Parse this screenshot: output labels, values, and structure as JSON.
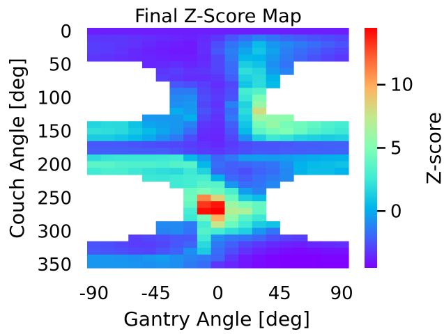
{
  "chart_data": {
    "type": "heatmap",
    "title": "Final Z-Score Map",
    "xlabel": "Gantry Angle [deg]",
    "ylabel": "Couch Angle [deg]",
    "colorbar_label": "Z-score",
    "colormap": "rainbow",
    "vmin": -4.5,
    "vmax": 14.5,
    "x_ticks": [
      {
        "value": -90,
        "label": "-90"
      },
      {
        "value": -45,
        "label": "-45"
      },
      {
        "value": 0,
        "label": "0"
      },
      {
        "value": 45,
        "label": "45"
      },
      {
        "value": 90,
        "label": "90"
      }
    ],
    "y_ticks": [
      {
        "value": 0,
        "label": "0"
      },
      {
        "value": 50,
        "label": "50"
      },
      {
        "value": 100,
        "label": "100"
      },
      {
        "value": 150,
        "label": "150"
      },
      {
        "value": 200,
        "label": "200"
      },
      {
        "value": 250,
        "label": "250"
      },
      {
        "value": 300,
        "label": "300"
      },
      {
        "value": 350,
        "label": "350"
      }
    ],
    "colorbar_ticks": [
      {
        "value": 0,
        "label": "0"
      },
      {
        "value": 5,
        "label": "5"
      },
      {
        "value": 10,
        "label": "10"
      }
    ],
    "x": [
      -90,
      -80,
      -70,
      -60,
      -50,
      -40,
      -30,
      -20,
      -10,
      0,
      10,
      20,
      30,
      40,
      50,
      60,
      70,
      80,
      90
    ],
    "y": [
      0,
      10,
      20,
      30,
      40,
      50,
      60,
      70,
      80,
      90,
      100,
      110,
      120,
      130,
      140,
      150,
      160,
      170,
      180,
      190,
      200,
      210,
      220,
      230,
      240,
      250,
      260,
      270,
      280,
      290,
      300,
      310,
      320,
      330,
      340,
      350
    ],
    "z": [
      [
        -3.8,
        -3.8,
        -3.8,
        -3.8,
        -3.8,
        -3.8,
        -3.8,
        -3.8,
        -3.8,
        -3.8,
        -3.8,
        -3.8,
        -3.8,
        -3.8,
        -3.8,
        -3.8,
        -3.8,
        -3.8,
        -3.8
      ],
      [
        -3.2,
        -3.2,
        -3.2,
        -3.3,
        -3.4,
        -3.5,
        -3.6,
        -3.7,
        -3.5,
        -3.2,
        -2.4,
        -1.8,
        -1.2,
        -1.6,
        -2.0,
        -2.3,
        -2.5,
        -2.7,
        -2.9
      ],
      [
        -3.0,
        -3.1,
        -3.2,
        -3.3,
        -3.5,
        -3.7,
        -3.8,
        -3.9,
        -3.4,
        -2.6,
        -1.6,
        -0.8,
        0.6,
        -0.6,
        -1.0,
        -1.4,
        -1.8,
        -2.2,
        -2.5
      ],
      [
        -3.0,
        -3.1,
        -3.3,
        -3.5,
        -3.7,
        -3.8,
        -3.9,
        -3.9,
        -3.4,
        -2.4,
        -1.3,
        -0.2,
        0.9,
        -0.3,
        -1.3,
        -1.8,
        -2.2,
        -2.6,
        -2.9
      ],
      [
        -3.2,
        -3.3,
        -3.4,
        -3.5,
        -3.6,
        -3.7,
        -3.8,
        -3.8,
        -3.5,
        -2.8,
        -1.5,
        0.4,
        0.3,
        -0.6,
        -1.4,
        -2.0,
        -2.5,
        -2.9,
        -3.2
      ],
      [
        null,
        null,
        null,
        null,
        -3.6,
        -3.5,
        -3.4,
        -3.6,
        -3.4,
        -2.8,
        -1.8,
        1.3,
        0.8,
        -0.8,
        -1.6,
        null,
        null,
        null,
        null
      ],
      [
        null,
        null,
        null,
        null,
        null,
        -3.2,
        -3.0,
        -3.3,
        -3.2,
        -2.9,
        -1.9,
        2.0,
        1.6,
        -0.5,
        -1.2,
        null,
        null,
        null,
        null
      ],
      [
        null,
        null,
        null,
        null,
        null,
        -3.0,
        -3.2,
        -3.4,
        -3.4,
        -3.2,
        -2.2,
        1.4,
        1.8,
        0.2,
        null,
        null,
        null,
        null,
        null
      ],
      [
        null,
        null,
        null,
        null,
        null,
        null,
        -2.4,
        -2.6,
        -3.0,
        -3.4,
        -2.8,
        0.9,
        1.9,
        0.5,
        null,
        null,
        null,
        null,
        null
      ],
      [
        null,
        null,
        null,
        null,
        null,
        null,
        -1.4,
        -1.4,
        -2.8,
        -3.2,
        -2.6,
        2.8,
        3.4,
        null,
        null,
        null,
        null,
        null,
        null
      ],
      [
        null,
        null,
        null,
        null,
        null,
        null,
        -1.0,
        -0.9,
        -2.6,
        -3.1,
        -2.5,
        2.4,
        4.8,
        null,
        null,
        null,
        null,
        null,
        null
      ],
      [
        null,
        null,
        null,
        null,
        null,
        null,
        -0.8,
        -0.6,
        -2.8,
        -3.3,
        -1.2,
        1.5,
        5.8,
        null,
        null,
        null,
        null,
        null,
        null
      ],
      [
        null,
        null,
        null,
        null,
        null,
        null,
        0.0,
        -0.5,
        -2.5,
        -3.1,
        -1.8,
        1.9,
        8.0,
        null,
        null,
        null,
        null,
        null,
        null
      ],
      [
        null,
        null,
        null,
        null,
        -0.6,
        -0.6,
        -0.6,
        0.1,
        -2.8,
        -3.3,
        -1.5,
        1.4,
        6.1,
        5.6,
        5.4,
        null,
        null,
        null,
        null
      ],
      [
        1.6,
        1.8,
        1.8,
        0.8,
        -0.2,
        -0.4,
        -0.6,
        -1.2,
        -3.2,
        -3.4,
        -2.2,
        0.9,
        4.6,
        5.8,
        4.6,
        4.4,
        3.9,
        3.2,
        2.8
      ],
      [
        2.1,
        2.0,
        1.8,
        1.1,
        0.5,
        -0.2,
        -0.7,
        -1.8,
        -3.4,
        -3.5,
        -2.5,
        0.5,
        3.8,
        4.6,
        5.0,
        4.2,
        3.4,
        2.9,
        2.5
      ],
      [
        1.2,
        1.2,
        0.9,
        0.5,
        -0.1,
        -0.8,
        -1.5,
        -2.6,
        -3.5,
        -3.6,
        -2.8,
        -0.8,
        1.4,
        2.5,
        2.2,
        1.6,
        1.4,
        1.2,
        1.4
      ],
      [
        -2.4,
        -2.4,
        -2.4,
        -2.5,
        -2.6,
        -2.7,
        -2.8,
        -3.0,
        -3.3,
        -3.5,
        -3.1,
        -2.7,
        -2.5,
        -2.5,
        -2.4,
        -2.3,
        -2.3,
        -2.2,
        -2.2
      ],
      [
        -2.2,
        -2.2,
        -2.2,
        -2.3,
        -2.3,
        -2.3,
        -2.5,
        -2.8,
        -3.1,
        -3.2,
        -2.9,
        -2.6,
        -2.4,
        -2.4,
        -2.3,
        -2.3,
        -2.2,
        -2.2,
        -2.1
      ],
      [
        1.9,
        2.3,
        2.4,
        2.4,
        2.4,
        2.5,
        2.6,
        0.5,
        -0.6,
        -2.0,
        -1.5,
        -0.5,
        -0.4,
        -0.5,
        -0.4,
        -0.2,
        -0.1,
        0.1,
        0.2
      ],
      [
        3.7,
        3.6,
        3.3,
        3.2,
        3.2,
        3.0,
        3.4,
        3.5,
        0.4,
        -1.8,
        -2.2,
        -2.0,
        -1.8,
        -1.6,
        -0.8,
        0.2,
        0.5,
        0.6,
        0.8
      ],
      [
        2.6,
        3.0,
        2.9,
        2.5,
        2.2,
        2.0,
        1.8,
        2.5,
        1.5,
        -2.0,
        -2.3,
        -2.6,
        -2.1,
        -1.8,
        -1.0,
        0.2,
        0.6,
        0.6,
        0.2
      ],
      [
        null,
        null,
        null,
        null,
        2.5,
        2.4,
        2.6,
        2.8,
        3.0,
        0.2,
        -1.9,
        -2.3,
        -1.8,
        -1.4,
        -1.0,
        null,
        null,
        null,
        null
      ],
      [
        null,
        null,
        null,
        null,
        null,
        null,
        2.6,
        2.8,
        3.6,
        3.5,
        -0.6,
        -1.8,
        -1.6,
        -1.0,
        null,
        null,
        null,
        null,
        null
      ],
      [
        null,
        null,
        null,
        null,
        null,
        null,
        null,
        4.2,
        4.8,
        4.2,
        3.0,
        -0.4,
        -1.2,
        null,
        null,
        null,
        null,
        null,
        null
      ],
      [
        null,
        null,
        null,
        null,
        null,
        null,
        null,
        4.4,
        11.0,
        8.4,
        4.2,
        1.2,
        0.6,
        null,
        null,
        null,
        null,
        null,
        null
      ],
      [
        null,
        null,
        null,
        null,
        null,
        null,
        null,
        4.0,
        13.2,
        14.0,
        6.0,
        4.8,
        4.0,
        null,
        null,
        null,
        null,
        null,
        null
      ],
      [
        null,
        null,
        null,
        null,
        null,
        null,
        null,
        2.8,
        14.2,
        14.5,
        7.0,
        6.6,
        4.0,
        null,
        null,
        null,
        null,
        null,
        null
      ],
      [
        null,
        null,
        null,
        null,
        null,
        null,
        null,
        2.5,
        4.5,
        9.8,
        5.6,
        3.5,
        2.5,
        null,
        null,
        null,
        null,
        null,
        null
      ],
      [
        null,
        null,
        null,
        null,
        null,
        -1.0,
        -1.0,
        -1.4,
        2.8,
        7.6,
        4.2,
        2.6,
        1.3,
        0.8,
        null,
        null,
        null,
        null,
        null
      ],
      [
        null,
        null,
        null,
        null,
        null,
        -1.2,
        -1.0,
        -1.6,
        3.4,
        2.8,
        2.0,
        1.4,
        -0.6,
        -1.6,
        null,
        null,
        null,
        null,
        null
      ],
      [
        null,
        null,
        null,
        -3.0,
        -2.8,
        -2.6,
        -2.4,
        -2.4,
        2.6,
        -0.9,
        -1.5,
        -1.6,
        -2.0,
        -2.6,
        -2.9,
        -3.0,
        null,
        null,
        null
      ],
      [
        -2.5,
        -2.6,
        -2.8,
        -3.0,
        -3.0,
        -2.8,
        -2.4,
        -2.0,
        1.8,
        -1.5,
        -2.2,
        -2.8,
        -3.2,
        -3.5,
        -3.7,
        -3.8,
        -3.6,
        -3.5,
        -3.4
      ],
      [
        -2.4,
        -2.5,
        -2.6,
        -2.8,
        -2.9,
        -2.5,
        -2.1,
        -0.8,
        1.2,
        -1.8,
        -2.6,
        -3.3,
        -3.7,
        -4.0,
        -4.2,
        -4.3,
        -4.2,
        -4.1,
        -4.1
      ],
      [
        -0.6,
        -0.6,
        -0.7,
        -0.8,
        -0.6,
        -0.4,
        -0.8,
        -1.2,
        -1.5,
        -2.0,
        -3.2,
        -3.9,
        -4.2,
        -4.4,
        -4.5,
        -4.5,
        -4.5,
        -4.4,
        -4.4
      ],
      [
        -0.6,
        -0.6,
        -0.6,
        -0.7,
        -0.8,
        -0.7,
        -0.8,
        -1.4,
        -1.8,
        -3.2,
        -3.6,
        -4.0,
        -4.3,
        -4.4,
        -4.5,
        -4.5,
        -4.5,
        -4.5,
        -4.5
      ]
    ]
  }
}
